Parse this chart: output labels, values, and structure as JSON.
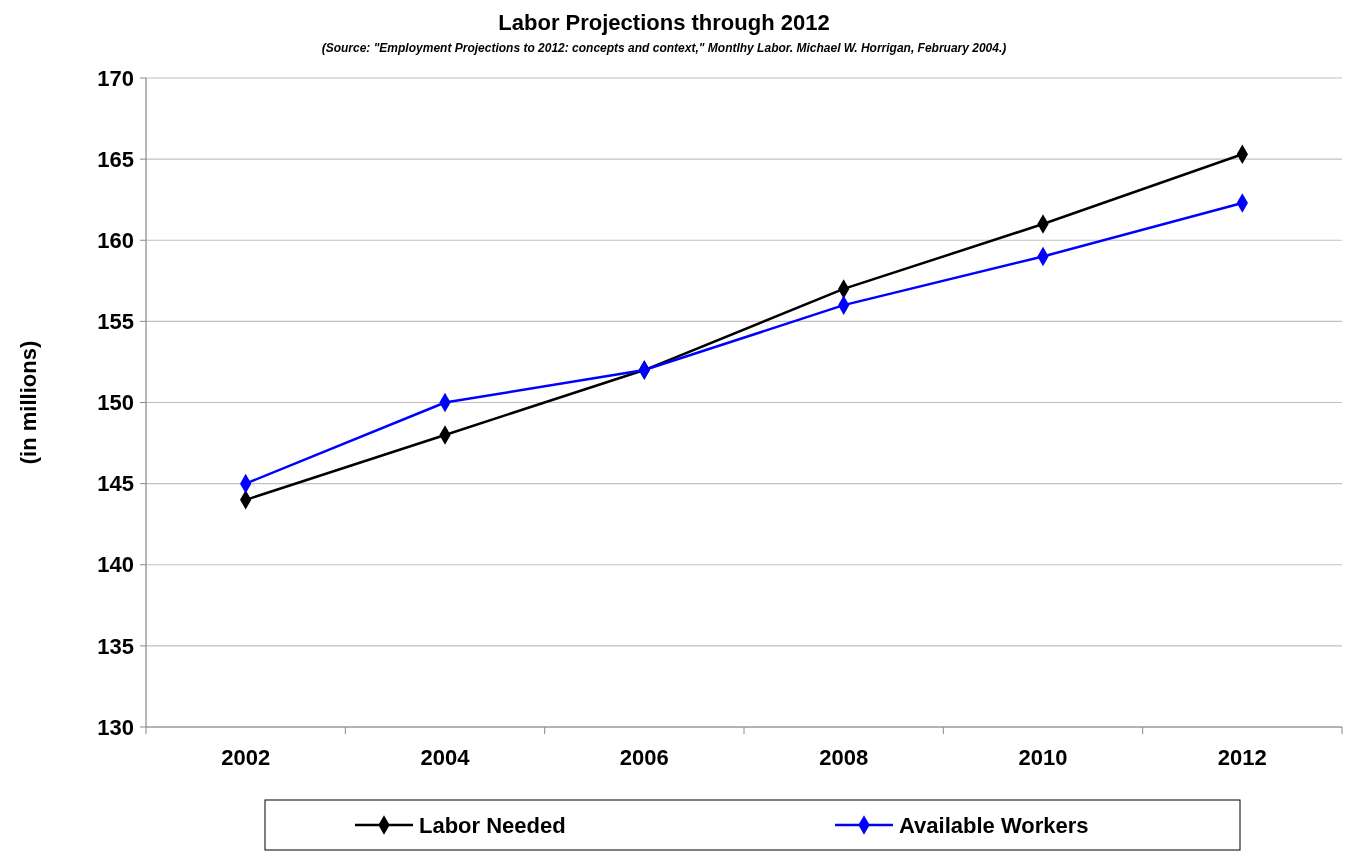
{
  "chart_data": {
    "type": "line",
    "title": "Labor Projections through 2012",
    "subtitle": "(Source: \"Employment Projections to 2012: concepts and context,\" Montlhy Labor. Michael W. Horrigan, February 2004.)",
    "ylabel": "(in millions)",
    "categories": [
      "2002",
      "2004",
      "2006",
      "2008",
      "2010",
      "2012"
    ],
    "series": [
      {
        "name": "Labor Needed",
        "color": "#000000",
        "values": [
          144,
          148,
          152,
          157,
          161,
          165.3
        ]
      },
      {
        "name": "Available Workers",
        "color": "#0000ff",
        "values": [
          145,
          150,
          152,
          156,
          159,
          162.3
        ]
      }
    ],
    "ylim": [
      130,
      170
    ],
    "yticks": [
      130,
      135,
      140,
      145,
      150,
      155,
      160,
      165,
      170
    ],
    "grid": "y",
    "legend": "bottom",
    "marker": "diamond",
    "line_style": "solid"
  }
}
